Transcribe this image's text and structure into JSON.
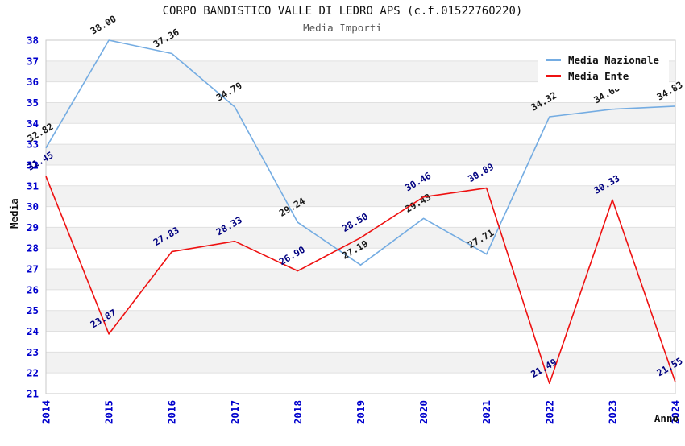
{
  "header": {
    "title": "CORPO BANDISTICO VALLE DI LEDRO APS (c.f.01522760220)",
    "subtitle": "Media Importi"
  },
  "chart_data": {
    "type": "line",
    "x": [
      2014,
      2015,
      2016,
      2017,
      2018,
      2019,
      2020,
      2021,
      2022,
      2023,
      2024
    ],
    "xlabel": "Anno",
    "ylabel": "Media",
    "ylim": [
      21,
      38
    ],
    "ytick_step": 1,
    "grid": true,
    "legend_position": "top-right",
    "series": [
      {
        "name": "Media Nazionale",
        "color": "#74ace2",
        "label_color": "#1a1a1a",
        "values": [
          32.82,
          38.0,
          37.36,
          34.79,
          29.24,
          27.19,
          29.43,
          27.71,
          34.32,
          34.68,
          34.83
        ]
      },
      {
        "name": "Media Ente",
        "color": "#ee1111",
        "label_color": "#000080",
        "values": [
          31.45,
          23.87,
          27.83,
          28.33,
          26.9,
          28.5,
          30.46,
          30.89,
          21.49,
          30.33,
          21.55
        ]
      }
    ]
  },
  "style": {
    "tick_color": "#0000cd",
    "band_gray": "#f2f2f2",
    "grid_color": "#e0e0e0",
    "border_color": "#c8c8c8"
  }
}
